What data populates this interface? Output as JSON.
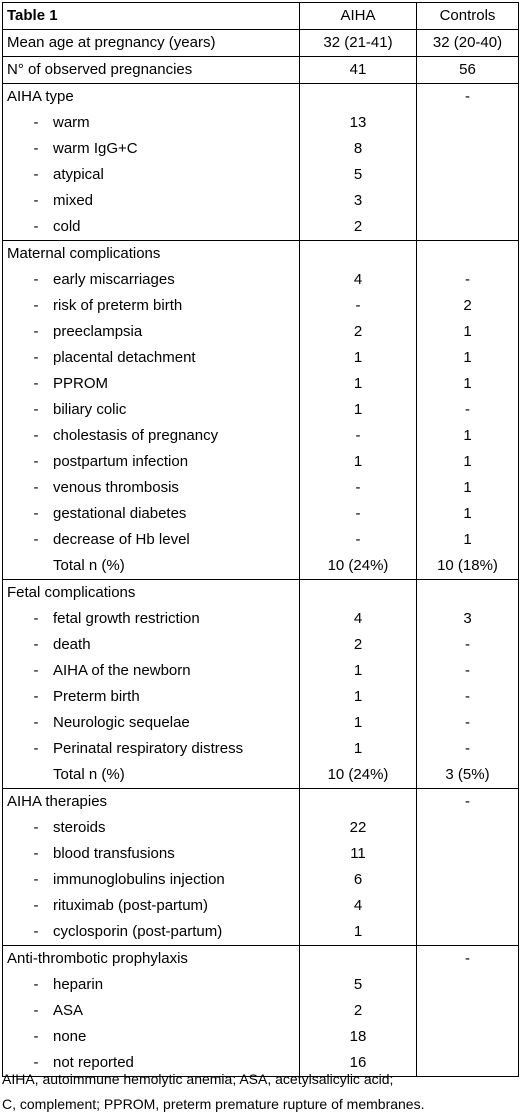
{
  "table": {
    "header": [
      "Table 1",
      "AIHA",
      "Controls"
    ],
    "sections": [
      {
        "lines": [
          {
            "text": "Mean age at pregnancy (years)",
            "aiha": [
              "32 (21-41)"
            ],
            "ctrl": [
              "32 (20-40)"
            ]
          }
        ]
      },
      {
        "lines": [
          {
            "text": "N° of observed pregnancies",
            "aiha": [
              "41"
            ],
            "ctrl": [
              "56"
            ]
          }
        ]
      },
      {
        "title": "AIHA type",
        "ctrl_title": "-",
        "items": [
          {
            "text": "warm",
            "aiha": "13",
            "ctrl": ""
          },
          {
            "text": "warm IgG+C",
            "aiha": "8",
            "ctrl": ""
          },
          {
            "text": "atypical",
            "aiha": "5",
            "ctrl": ""
          },
          {
            "text": "mixed",
            "aiha": "3",
            "ctrl": ""
          },
          {
            "text": "cold",
            "aiha": "2",
            "ctrl": ""
          }
        ]
      },
      {
        "title": "Maternal complications",
        "ctrl_title": "",
        "items": [
          {
            "text": "early miscarriages",
            "aiha": "4",
            "ctrl": "-"
          },
          {
            "text": "risk of preterm birth",
            "aiha": "-",
            "ctrl": "2"
          },
          {
            "text": "preeclampsia",
            "aiha": "2",
            "ctrl": "1"
          },
          {
            "text": "placental detachment",
            "aiha": "1",
            "ctrl": "1"
          },
          {
            "text": "PPROM",
            "aiha": "1",
            "ctrl": "1"
          },
          {
            "text": "biliary colic",
            "aiha": "1",
            "ctrl": "-"
          },
          {
            "text": "cholestasis of pregnancy",
            "aiha": "-",
            "ctrl": "1"
          },
          {
            "text": "postpartum infection",
            "aiha": "1",
            "ctrl": "1"
          },
          {
            "text": "venous thrombosis",
            "aiha": "-",
            "ctrl": "1"
          },
          {
            "text": "gestational diabetes",
            "aiha": "-",
            "ctrl": "1"
          },
          {
            "text": "decrease of Hb level",
            "aiha": "-",
            "ctrl": "1"
          }
        ],
        "total": {
          "text": "Total n (%)",
          "aiha": "10 (24%)",
          "ctrl": "10 (18%)"
        }
      },
      {
        "title": "Fetal complications",
        "ctrl_title": "",
        "items": [
          {
            "text": "fetal growth restriction",
            "aiha": "4",
            "ctrl": "3"
          },
          {
            "text": "death",
            "aiha": "2",
            "ctrl": "-"
          },
          {
            "text": "AIHA of the newborn",
            "aiha": "1",
            "ctrl": "-"
          },
          {
            "text": "Preterm birth",
            "aiha": "1",
            "ctrl": "-"
          },
          {
            "text": "Neurologic sequelae",
            "aiha": "1",
            "ctrl": "-"
          },
          {
            "text": "Perinatal respiratory distress",
            "aiha": "1",
            "ctrl": "-"
          }
        ],
        "total": {
          "text": "Total n (%)",
          "aiha": "10 (24%)",
          "ctrl": "3 (5%)"
        }
      },
      {
        "title": "AIHA therapies",
        "ctrl_title": "-",
        "items": [
          {
            "text": "steroids",
            "aiha": "22",
            "ctrl": ""
          },
          {
            "text": "blood transfusions",
            "aiha": "11",
            "ctrl": ""
          },
          {
            "text": "immunoglobulins injection",
            "aiha": "6",
            "ctrl": ""
          },
          {
            "text": "rituximab (post-partum)",
            "aiha": "4",
            "ctrl": ""
          },
          {
            "text": "cyclosporin (post-partum)",
            "aiha": "1",
            "ctrl": ""
          }
        ]
      },
      {
        "title": "Anti-thrombotic prophylaxis",
        "ctrl_title": "-",
        "items": [
          {
            "text": "heparin",
            "aiha": "5",
            "ctrl": ""
          },
          {
            "text": "ASA",
            "aiha": "2",
            "ctrl": ""
          },
          {
            "text": "none",
            "aiha": "18",
            "ctrl": ""
          },
          {
            "text": "not reported",
            "aiha": "16",
            "ctrl": ""
          }
        ]
      }
    ],
    "bullet": "-"
  },
  "footnote": [
    "AIHA, autoimmune hemolytic anemia; ASA, acetylsalicylic acid;",
    "C, complement; PPROM, preterm premature rupture of membranes."
  ]
}
